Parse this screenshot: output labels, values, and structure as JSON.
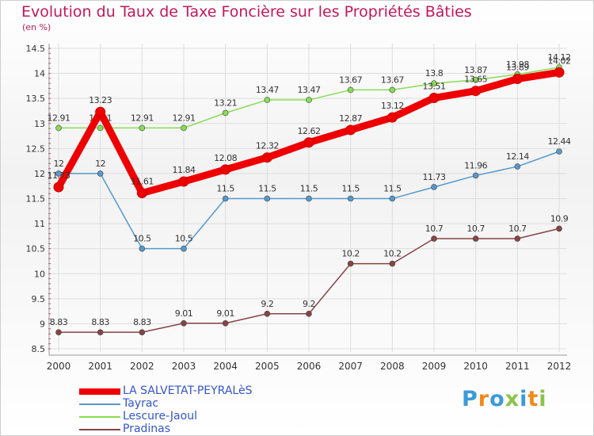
{
  "chart_data": {
    "type": "line",
    "title": "Evolution du Taux de Taxe Foncière sur les Propriétés Bâties",
    "unit_label": "(en %)",
    "categories": [
      "2000",
      "2001",
      "2002",
      "2003",
      "2004",
      "2005",
      "2006",
      "2007",
      "2008",
      "2009",
      "2010",
      "2011",
      "2012"
    ],
    "ylim": [
      8.5,
      14.5
    ],
    "yticks": [
      "8.5",
      "9",
      "9.5",
      "10",
      "10.5",
      "11",
      "11.5",
      "12",
      "12.5",
      "13",
      "13.5",
      "14",
      "14.5"
    ],
    "grid": true,
    "series": [
      {
        "name": "LA SALVETAT-PEYRALèS",
        "color": "#ee0000",
        "values": [
          11.73,
          13.23,
          11.61,
          11.84,
          12.08,
          12.32,
          12.62,
          12.87,
          13.12,
          13.51,
          13.65,
          13.89,
          14.02
        ],
        "labels": [
          "11.73",
          "13.23",
          "11.61",
          "11.84",
          "12.08",
          "12.32",
          "12.62",
          "12.87",
          "13.12",
          "13.51",
          "13.65",
          "13.89",
          "14.02"
        ]
      },
      {
        "name": "Tayrac",
        "color": "#5599cc",
        "values": [
          12,
          12,
          10.5,
          10.5,
          11.5,
          11.5,
          11.5,
          11.5,
          11.5,
          11.73,
          11.96,
          12.14,
          12.44
        ],
        "labels": [
          "12",
          "12",
          "10.5",
          "10.5",
          "11.5",
          "11.5",
          "11.5",
          "11.5",
          "11.5",
          "11.73",
          "11.96",
          "12.14",
          "12.44"
        ]
      },
      {
        "name": "Lescure-Jaoul",
        "color": "#88dd55",
        "values": [
          12.91,
          12.91,
          12.91,
          12.91,
          13.21,
          13.47,
          13.47,
          13.67,
          13.67,
          13.8,
          13.87,
          13.98,
          14.12
        ],
        "labels": [
          "12.91",
          "12.91",
          "12.91",
          "12.91",
          "13.21",
          "13.47",
          "13.47",
          "13.67",
          "13.67",
          "13.8",
          "13.87",
          "13.98",
          "14.12"
        ]
      },
      {
        "name": "Pradinas",
        "color": "#884444",
        "values": [
          8.83,
          8.83,
          8.83,
          9.01,
          9.01,
          9.2,
          9.2,
          10.2,
          10.2,
          10.7,
          10.7,
          10.7,
          10.9
        ],
        "labels": [
          "8.83",
          "8.83",
          "8.83",
          "9.01",
          "9.01",
          "9.2",
          "9.2",
          "10.2",
          "10.2",
          "10.7",
          "10.7",
          "10.7",
          "10.9"
        ]
      }
    ]
  },
  "legend": [
    {
      "label": "LA SALVETAT-PEYRALèS",
      "color": "#ee0000"
    },
    {
      "label": "Tayrac",
      "color": "#5599cc"
    },
    {
      "label": "Lescure-Jaoul",
      "color": "#88dd55"
    },
    {
      "label": "Pradinas",
      "color": "#884444"
    }
  ],
  "logo": {
    "text": "Proxiti",
    "colors": [
      "#3a9ad9",
      "#f08a1c",
      "#3a9ad9",
      "#8bc34a",
      "#3a9ad9",
      "#f08a1c",
      "#8bc34a"
    ]
  }
}
